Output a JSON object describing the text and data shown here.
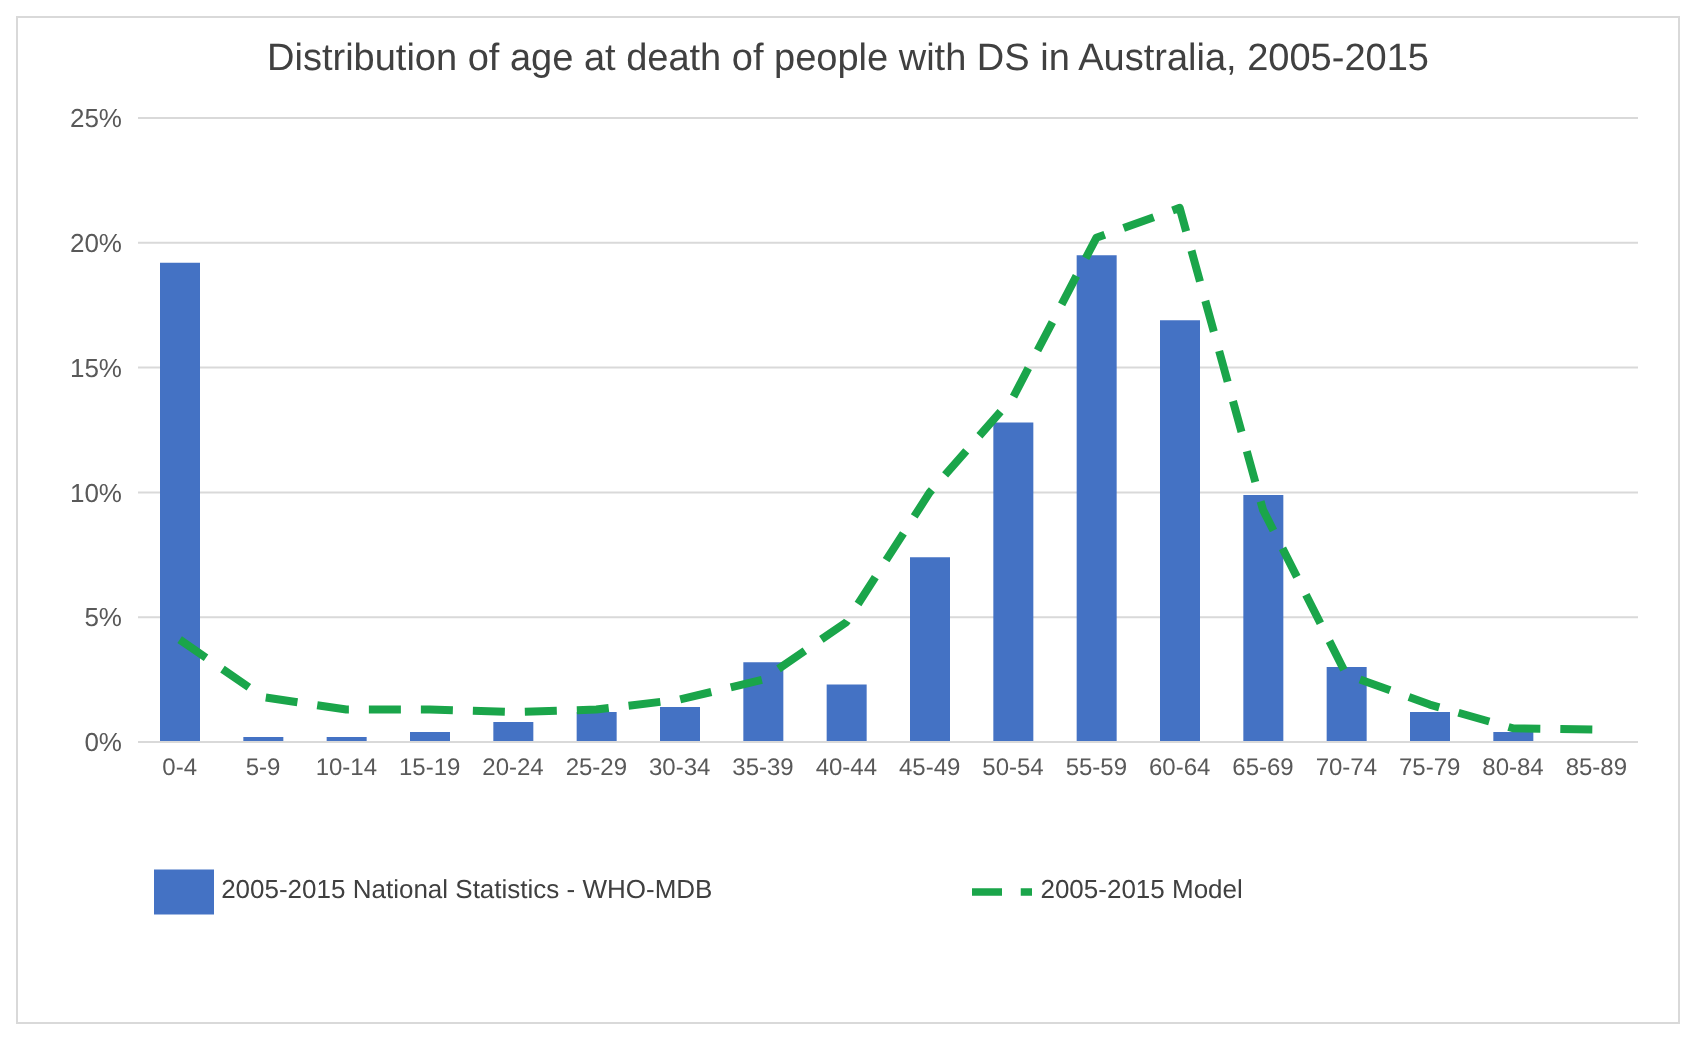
{
  "chart_data": {
    "type": "bar",
    "title": "Distribution of age at death of people with DS in Australia, 2005-2015",
    "categories": [
      "0-4",
      "5-9",
      "10-14",
      "15-19",
      "20-24",
      "25-29",
      "30-34",
      "35-39",
      "40-44",
      "45-49",
      "50-54",
      "55-59",
      "60-64",
      "65-69",
      "70-74",
      "75-79",
      "80-84",
      "85-89"
    ],
    "series": [
      {
        "name": "2005-2015 National Statistics - WHO-MDB",
        "color": "#4472c4",
        "values": [
          19.2,
          0.2,
          0.2,
          0.4,
          0.8,
          1.2,
          1.4,
          3.2,
          2.3,
          7.4,
          12.8,
          19.5,
          16.9,
          9.9,
          3.0,
          1.2,
          0.4,
          null
        ]
      },
      {
        "name": "2005-2015 Model",
        "type": "line",
        "color": "#1aa54a",
        "line_style": "dashed",
        "marker": "none",
        "values": [
          4.1,
          1.8,
          1.3,
          1.3,
          1.2,
          1.3,
          1.7,
          2.5,
          4.8,
          10.0,
          13.8,
          20.2,
          21.4,
          9.3,
          2.7,
          1.5,
          0.55,
          0.5
        ]
      }
    ],
    "ylim": [
      0,
      25
    ],
    "yticks": [
      {
        "value": 0,
        "label": "0%"
      },
      {
        "value": 5,
        "label": "5%"
      },
      {
        "value": 10,
        "label": "10%"
      },
      {
        "value": 15,
        "label": "15%"
      },
      {
        "value": 20,
        "label": "20%"
      },
      {
        "value": 25,
        "label": "25%"
      }
    ],
    "grid": "y",
    "legend": "bottom"
  }
}
